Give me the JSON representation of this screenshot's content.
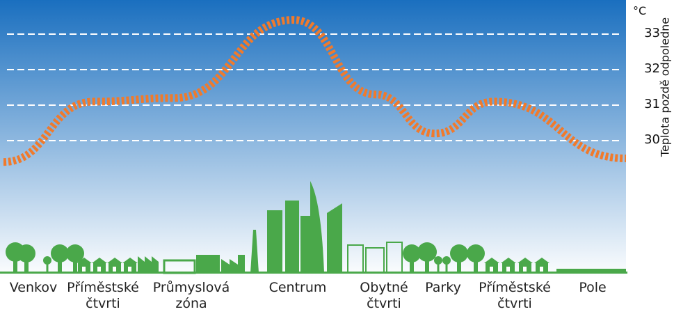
{
  "chart_data": {
    "type": "line",
    "unit": "°C",
    "ylabel": "Teplota pozdě odpoledne",
    "yticks": [
      30,
      31,
      32,
      33
    ],
    "ylim": [
      29.4,
      33.6
    ],
    "categories": [
      {
        "line1": "Venkov",
        "line2": ""
      },
      {
        "line1": "Příměstské",
        "line2": "čtvrti"
      },
      {
        "line1": "Průmyslová",
        "line2": "zóna"
      },
      {
        "line1": "Centrum",
        "line2": ""
      },
      {
        "line1": "Obytné",
        "line2": "čtvrti"
      },
      {
        "line1": "Parky",
        "line2": ""
      },
      {
        "line1": "Příměstské",
        "line2": "čtvrti"
      },
      {
        "line1": "Pole",
        "line2": ""
      }
    ],
    "values": [
      29.4,
      31.1,
      31.2,
      33.4,
      31.3,
      30.2,
      31.1,
      29.5
    ],
    "colors": {
      "sky_top": "#1a6fbf",
      "sky_bottom": "#ffffff",
      "curve": "#f07a2c",
      "city": "#4aa84a"
    }
  }
}
